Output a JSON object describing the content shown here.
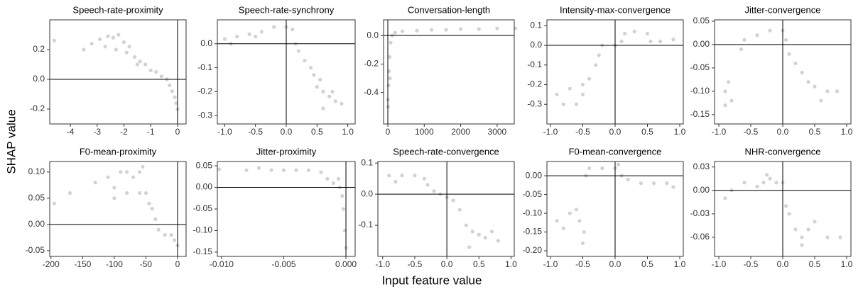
{
  "y_label": "SHAP value",
  "x_label": "Input feature value",
  "chart_data": [
    {
      "type": "scatter",
      "title": "Speech-rate-proximity",
      "color": "#7f7f7f",
      "hline": 0,
      "vline": 0,
      "xlim": [
        -4.77,
        0.32
      ],
      "ylim": [
        -0.3,
        0.4
      ],
      "xticks": [
        -4,
        -3,
        -2,
        -1,
        0
      ],
      "yticks": [
        -0.2,
        {
          "value": 0,
          "label": "0.0"
        },
        0.2
      ],
      "x": [
        -4.6,
        -3.5,
        -3.2,
        -2.9,
        -2.6,
        -2.4,
        -2.2,
        -2.0,
        -1.8,
        -1.6,
        -1.4,
        -1.2,
        -1.0,
        -0.8,
        -0.6,
        -0.4,
        -0.3,
        -0.2,
        -0.1,
        -0.05,
        0,
        -2.3,
        -1.9,
        -1.5,
        -2.7
      ],
      "values": [
        0.26,
        0.2,
        0.24,
        0.27,
        0.29,
        0.28,
        0.3,
        0.25,
        0.22,
        0.15,
        0.12,
        0.1,
        0.06,
        0.05,
        0.02,
        0.0,
        -0.04,
        -0.08,
        -0.12,
        -0.16,
        -0.2,
        0.2,
        0.18,
        0.1,
        0.22
      ]
    },
    {
      "type": "scatter",
      "title": "Speech-rate-synchrony",
      "color": "#7f7f7f",
      "hline": 0,
      "vline": 0,
      "xlim": [
        -1.12,
        1.12
      ],
      "ylim": [
        -0.335,
        0.1
      ],
      "xticks": [
        {
          "value": -1,
          "label": "-1.0"
        },
        -0.5,
        {
          "value": 0,
          "label": "0.0"
        },
        0.5,
        {
          "value": 1,
          "label": "1.0"
        }
      ],
      "yticks": [
        -0.3,
        -0.2,
        -0.1,
        {
          "value": 0,
          "label": "0.0"
        }
      ],
      "x": [
        -1,
        -0.8,
        -0.6,
        -0.4,
        -0.2,
        0,
        0.1,
        0.15,
        0.2,
        0.3,
        0.4,
        0.45,
        0.5,
        0.6,
        0.7,
        0.8,
        0.9,
        0.6,
        0.75,
        -0.9,
        -0.5,
        0.55
      ],
      "values": [
        0.02,
        0.03,
        0.04,
        0.05,
        0.07,
        0.07,
        0.06,
        0.0,
        -0.03,
        -0.07,
        -0.1,
        -0.13,
        -0.18,
        -0.2,
        -0.22,
        -0.24,
        -0.25,
        -0.27,
        -0.2,
        0.0,
        0.03,
        -0.15
      ]
    },
    {
      "type": "scatter",
      "title": "Conversation-length",
      "color": "#7f7f7f",
      "hline": 0,
      "vline": 0,
      "xlim": [
        -117,
        3470
      ],
      "ylim": [
        -0.62,
        0.11
      ],
      "xticks": [
        0,
        1000,
        2000,
        3000
      ],
      "yticks": [
        -0.4,
        -0.2,
        {
          "value": 0,
          "label": "0.0"
        }
      ],
      "x": [
        0,
        10,
        20,
        30,
        50,
        80,
        120,
        200,
        400,
        800,
        1200,
        1600,
        2000,
        2500,
        3000,
        3500,
        60
      ],
      "values": [
        -0.45,
        -0.5,
        -0.35,
        -0.25,
        -0.15,
        -0.05,
        0.0,
        0.02,
        0.03,
        0.035,
        0.04,
        0.04,
        0.045,
        0.045,
        0.05,
        0.05,
        -0.3
      ]
    },
    {
      "type": "scatter",
      "title": "Intensity-max-convergence",
      "color": "#7f7f7f",
      "hline": 0,
      "vline": 0,
      "xlim": [
        -1.055,
        1.055
      ],
      "ylim": [
        -0.4,
        0.13
      ],
      "xticks": [
        {
          "value": -1,
          "label": "-1.0"
        },
        -0.5,
        {
          "value": 0,
          "label": "0.0"
        },
        0.5,
        {
          "value": 1,
          "label": "1.0"
        }
      ],
      "yticks": [
        -0.3,
        -0.2,
        -0.1,
        {
          "value": 0,
          "label": "0.0"
        },
        0.1
      ],
      "x": [
        -0.9,
        -0.7,
        -0.5,
        -0.4,
        -0.3,
        -0.25,
        -0.2,
        0,
        0.1,
        0.15,
        0.3,
        0.5,
        0.55,
        0.7,
        0.9,
        -0.6,
        -0.8,
        -0.5
      ],
      "values": [
        -0.25,
        -0.22,
        -0.2,
        -0.17,
        -0.1,
        -0.05,
        0.0,
        0.0,
        0.02,
        0.06,
        0.07,
        0.06,
        0.02,
        0.02,
        0.03,
        -0.3,
        -0.3,
        -0.25
      ]
    },
    {
      "type": "scatter",
      "title": "Jitter-convergence",
      "color": "#7f7f7f",
      "hline": 0,
      "vline": 0,
      "xlim": [
        -1.067,
        1.067
      ],
      "ylim": [
        -0.17,
        0.053
      ],
      "xticks": [
        {
          "value": -1,
          "label": "-1.0"
        },
        -0.5,
        {
          "value": 0,
          "label": "0.0"
        },
        0.5,
        {
          "value": 1,
          "label": "1.0"
        }
      ],
      "yticks": [
        -0.15,
        {
          "value": -0.1,
          "label": "-0.10"
        },
        -0.05,
        {
          "value": 0,
          "label": "0.00"
        },
        0.05
      ],
      "x": [
        -0.9,
        -0.85,
        -0.8,
        -0.65,
        -0.6,
        -0.4,
        -0.2,
        0,
        0.05,
        0.1,
        0.2,
        0.3,
        0.4,
        0.5,
        0.7,
        0.85,
        0.6,
        -0.9
      ],
      "values": [
        -0.1,
        -0.08,
        -0.12,
        -0.01,
        0.01,
        0.02,
        0.03,
        0.03,
        0.01,
        -0.02,
        -0.04,
        -0.06,
        -0.08,
        -0.09,
        -0.1,
        -0.1,
        -0.12,
        -0.13
      ]
    },
    {
      "type": "scatter",
      "title": "F0-mean-proximity",
      "color": "#7f7f7f",
      "hline": 0,
      "vline": 0,
      "xlim": [
        -202,
        13.5
      ],
      "ylim": [
        -0.061,
        0.12
      ],
      "xticks": [
        -200,
        -150,
        -100,
        -50,
        0
      ],
      "yticks": [
        -0.05,
        {
          "value": 0,
          "label": "0.00"
        },
        0.05,
        {
          "value": 0.1,
          "label": "0.10"
        }
      ],
      "x": [
        -195,
        -170,
        -130,
        -110,
        -100,
        -90,
        -80,
        -70,
        -60,
        -55,
        -50,
        -45,
        -40,
        -35,
        -30,
        -20,
        -10,
        -5,
        0,
        -100,
        -80,
        -60
      ],
      "values": [
        0.04,
        0.06,
        0.08,
        0.09,
        0.07,
        0.1,
        0.1,
        0.09,
        0.1,
        0.11,
        0.06,
        0.04,
        0.03,
        0.01,
        -0.01,
        -0.02,
        -0.02,
        -0.03,
        -0.04,
        0.05,
        0.06,
        0.06
      ]
    },
    {
      "type": "scatter",
      "title": "Jitter-proximity",
      "color": "#7f7f7f",
      "hline": 0,
      "vline": 0,
      "xlim": [
        -0.01034,
        0.00074
      ],
      "ylim": [
        -0.16,
        0.06
      ],
      "xticks": [
        {
          "value": -0.01,
          "label": "-0.010"
        },
        -0.005,
        {
          "value": 0,
          "label": "0.000"
        }
      ],
      "yticks": [
        -0.15,
        {
          "value": -0.1,
          "label": "-0.10"
        },
        -0.05,
        {
          "value": 0,
          "label": "0.00"
        },
        0.05
      ],
      "x": [
        -0.0102,
        -0.008,
        -0.007,
        -0.006,
        -0.005,
        -0.004,
        -0.003,
        -0.002,
        -0.0015,
        -0.001,
        -0.0005,
        -0.0003,
        -0.0002,
        -0.0001,
        0,
        -0.0006
      ],
      "values": [
        0.042,
        0.04,
        0.045,
        0.04,
        0.04,
        0.04,
        0.04,
        0.035,
        0.02,
        0.01,
        0.0,
        -0.02,
        -0.05,
        -0.1,
        -0.14,
        0.02
      ]
    },
    {
      "type": "scatter",
      "title": "Speech-rate-convergence",
      "color": "#7f7f7f",
      "hline": 0,
      "vline": 0,
      "xlim": [
        -1.075,
        1.05
      ],
      "ylim": [
        -0.2,
        0.105
      ],
      "xticks": [
        {
          "value": -1,
          "label": "-1.0"
        },
        -0.5,
        {
          "value": 0,
          "label": "0.0"
        },
        0.5,
        {
          "value": 1,
          "label": "1.0"
        }
      ],
      "yticks": [
        -0.1,
        {
          "value": 0,
          "label": "0.0"
        },
        0.1
      ],
      "x": [
        -0.9,
        -0.7,
        -0.5,
        -0.35,
        -0.3,
        -0.2,
        -0.1,
        0,
        0.1,
        0.2,
        0.3,
        0.4,
        0.5,
        0.6,
        0.8,
        0.35,
        -0.8,
        0.7
      ],
      "values": [
        0.06,
        0.06,
        0.06,
        0.05,
        0.03,
        0.01,
        0.0,
        -0.01,
        -0.02,
        -0.05,
        -0.1,
        -0.12,
        -0.13,
        -0.14,
        -0.15,
        -0.17,
        0.04,
        -0.12
      ]
    },
    {
      "type": "scatter",
      "title": "F0-mean-convergence",
      "color": "#7f7f7f",
      "hline": 0,
      "vline": 0,
      "xlim": [
        -1.055,
        1.055
      ],
      "ylim": [
        -0.215,
        0.038
      ],
      "xticks": [
        {
          "value": -1,
          "label": "-1.0"
        },
        -0.5,
        {
          "value": 0,
          "label": "0.0"
        },
        0.5,
        {
          "value": 1,
          "label": "1.0"
        }
      ],
      "yticks": [
        {
          "value": -0.2,
          "label": "-0.20"
        },
        -0.15,
        {
          "value": -0.1,
          "label": "-0.10"
        },
        -0.05,
        {
          "value": 0,
          "label": "0.00"
        }
      ],
      "x": [
        -0.9,
        -0.8,
        -0.7,
        -0.6,
        -0.55,
        -0.5,
        -0.48,
        -0.45,
        -0.4,
        -0.2,
        0,
        0.05,
        0.1,
        0.2,
        0.4,
        0.6,
        0.8,
        0.9
      ],
      "values": [
        -0.12,
        -0.14,
        -0.1,
        -0.09,
        -0.12,
        -0.18,
        -0.15,
        0.0,
        0.02,
        0.02,
        0.02,
        0.03,
        0.0,
        -0.01,
        -0.02,
        -0.02,
        -0.02,
        -0.03
      ]
    },
    {
      "type": "scatter",
      "title": "NHR-convergence",
      "color": "#7f7f7f",
      "hline": 0,
      "vline": 0,
      "xlim": [
        -1.067,
        1.067
      ],
      "ylim": [
        -0.0845,
        0.037
      ],
      "xticks": [
        {
          "value": -1,
          "label": "-1.0"
        },
        -0.5,
        {
          "value": 0,
          "label": "0.0"
        },
        0.5,
        {
          "value": 1,
          "label": "1.0"
        }
      ],
      "yticks": [
        -0.06,
        -0.03,
        {
          "value": 0,
          "label": "0.00"
        },
        0.03
      ],
      "x": [
        -0.9,
        -0.8,
        -0.6,
        -0.4,
        -0.3,
        -0.25,
        -0.2,
        -0.1,
        0,
        0.05,
        0.1,
        0.2,
        0.3,
        0.4,
        0.5,
        0.7,
        0.9,
        0.3
      ],
      "values": [
        -0.01,
        0.0,
        0.01,
        0.005,
        0.01,
        0.02,
        0.015,
        0.01,
        0.01,
        -0.02,
        -0.03,
        -0.05,
        -0.06,
        -0.05,
        -0.04,
        -0.06,
        -0.06,
        -0.07
      ]
    }
  ]
}
